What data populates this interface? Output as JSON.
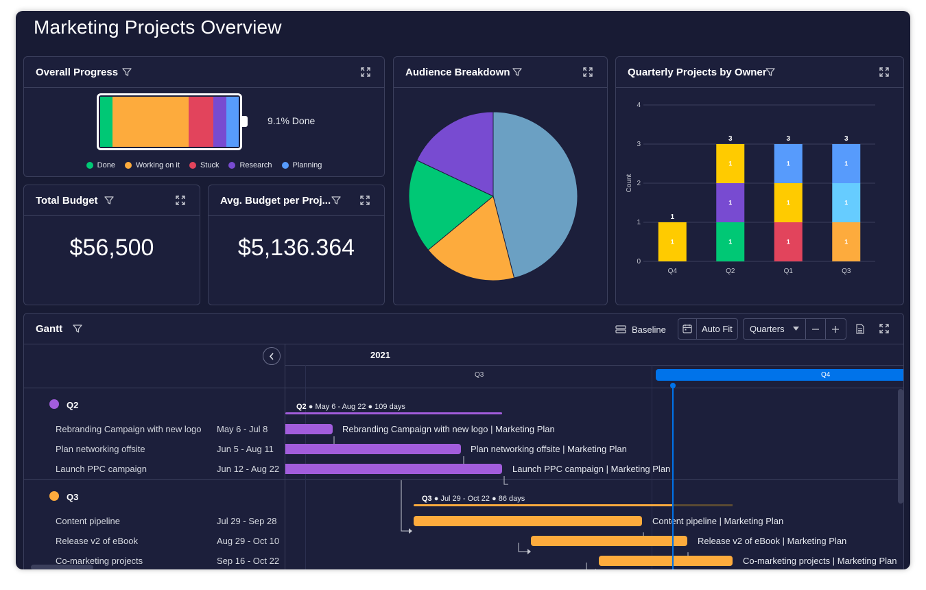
{
  "page": {
    "title": "Marketing Projects Overview"
  },
  "colors": {
    "done": "#00c875",
    "working": "#fdab3d",
    "stuck": "#e2445c",
    "research": "#784bd1",
    "planning": "#579bfc",
    "light_blue": "#66ccff",
    "yellow": "#ffcb00",
    "pie_blue": "#6ba0c3",
    "accent": "#0073ea"
  },
  "overall_progress": {
    "title": "Overall Progress",
    "done_text": "9.1% Done",
    "done_percent": 9.1,
    "segments": [
      {
        "status": "Done",
        "value": 1,
        "color": "#00c875"
      },
      {
        "status": "Working on it",
        "value": 6,
        "color": "#fdab3d"
      },
      {
        "status": "Stuck",
        "value": 2,
        "color": "#e2445c"
      },
      {
        "status": "Research",
        "value": 1,
        "color": "#784bd1"
      },
      {
        "status": "Planning",
        "value": 1,
        "color": "#579bfc"
      }
    ],
    "legend": [
      "Done",
      "Working on it",
      "Stuck",
      "Research",
      "Planning"
    ]
  },
  "total_budget": {
    "title": "Total Budget",
    "value": "$56,500"
  },
  "avg_budget": {
    "title": "Avg. Budget per Proj...",
    "value": "$5,136.364"
  },
  "audience": {
    "title": "Audience Breakdown",
    "slices": [
      {
        "value": 46,
        "color": "#6ba0c3"
      },
      {
        "value": 18,
        "color": "#fdab3d"
      },
      {
        "value": 18,
        "color": "#00c875"
      },
      {
        "value": 18,
        "color": "#784bd1"
      }
    ]
  },
  "quarterly": {
    "title": "Quarterly Projects by Owner",
    "chart_data": {
      "type": "bar",
      "stacked": true,
      "categories": [
        "Q4",
        "Q2",
        "Q1",
        "Q3"
      ],
      "ylabel": "Count",
      "ylim": [
        0,
        4
      ],
      "yticks": [
        "0",
        "1",
        "2",
        "3",
        "4"
      ],
      "totals": [
        "1",
        "3",
        "3",
        "3"
      ],
      "stacks": [
        [
          {
            "value": 1,
            "label": "1",
            "color": "#ffcb00"
          }
        ],
        [
          {
            "value": 1,
            "label": "1",
            "color": "#00c875"
          },
          {
            "value": 1,
            "label": "1",
            "color": "#784bd1"
          },
          {
            "value": 1,
            "label": "1",
            "color": "#ffcb00"
          }
        ],
        [
          {
            "value": 1,
            "label": "1",
            "color": "#e2445c"
          },
          {
            "value": 1,
            "label": "1",
            "color": "#ffcb00"
          },
          {
            "value": 1,
            "label": "1",
            "color": "#579bfc"
          }
        ],
        [
          {
            "value": 1,
            "label": "1",
            "color": "#fdab3d"
          },
          {
            "value": 1,
            "label": "1",
            "color": "#66ccff"
          },
          {
            "value": 1,
            "label": "1",
            "color": "#579bfc"
          }
        ]
      ],
      "grid": true
    }
  },
  "gantt": {
    "title": "Gantt",
    "baseline_label": "Baseline",
    "autofit_label": "Auto Fit",
    "zoom_value": "Quarters",
    "year_label": "2021",
    "q3_label": "Q3",
    "q4_label": "Q4",
    "groups": [
      {
        "name": "Q2",
        "color": "#a25ddc",
        "summary_name": "Q2",
        "summary_text": " ● May 6 - Aug 22 ● 109 days",
        "items": [
          {
            "name": "Rebranding Campaign with new logo",
            "dates": "May 6 - Jul 8",
            "bar_label": "Rebranding Campaign with new logo | Marketing Plan"
          },
          {
            "name": "Plan networking offsite",
            "dates": "Jun 5 - Aug 11",
            "bar_label": "Plan networking offsite | Marketing Plan"
          },
          {
            "name": "Launch PPC campaign",
            "dates": "Jun 12 - Aug 22",
            "bar_label": "Launch PPC campaign | Marketing Plan"
          }
        ]
      },
      {
        "name": "Q3",
        "color": "#fdab3d",
        "summary_name": "Q3",
        "summary_text": " ● Jul 29 - Oct 22 ● 86 days",
        "items": [
          {
            "name": "Content pipeline",
            "dates": "Jul 29 - Sep 28",
            "bar_label": "Content pipeline | Marketing Plan"
          },
          {
            "name": "Release v2 of eBook",
            "dates": "Aug 29 - Oct 10",
            "bar_label": "Release v2 of eBook | Marketing Plan"
          },
          {
            "name": "Co-marketing projects",
            "dates": "Sep 16 - Oct 22",
            "bar_label": "Co-marketing projects | Marketing Plan"
          }
        ]
      }
    ]
  }
}
